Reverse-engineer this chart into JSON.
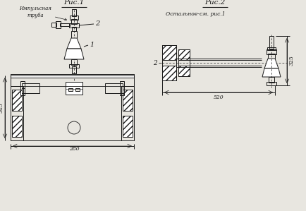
{
  "bg_color": "#e8e6e0",
  "line_color": "#1a1a1a",
  "fig1_title": "Рис.1",
  "fig2_title": "Рис.2",
  "fig2_subtitle": "Остальное-см. рис.1",
  "label_impulse": "Импульсная\nтруба",
  "label_1": "1",
  "label_2": "2",
  "dim_385": "385",
  "dim_325": "325",
  "dim_280": "280",
  "dim_520": "520"
}
